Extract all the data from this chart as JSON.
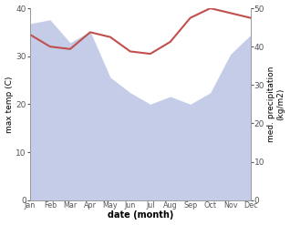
{
  "months": [
    "Jan",
    "Feb",
    "Mar",
    "Apr",
    "May",
    "Jun",
    "Jul",
    "Aug",
    "Sep",
    "Oct",
    "Nov",
    "Dec"
  ],
  "temperature": [
    34.5,
    32.0,
    31.5,
    35.0,
    34.0,
    31.0,
    30.5,
    33.0,
    38.0,
    40.0,
    39.0,
    38.0
  ],
  "precipitation": [
    46.0,
    47.0,
    41.0,
    44.0,
    32.0,
    28.0,
    25.0,
    27.0,
    25.0,
    28.0,
    38.0,
    43.0
  ],
  "temp_color": "#c0504d",
  "precip_color": "#c5cce8",
  "ylim_temp": [
    0,
    40
  ],
  "ylim_precip": [
    0,
    50
  ],
  "temp_yticks": [
    0,
    10,
    20,
    30,
    40
  ],
  "precip_yticks": [
    0,
    10,
    20,
    30,
    40,
    50
  ],
  "xlabel": "date (month)",
  "ylabel_left": "max temp (C)",
  "ylabel_right": "med. precipitation\n(kg/m2)",
  "bg_color": "#ffffff"
}
